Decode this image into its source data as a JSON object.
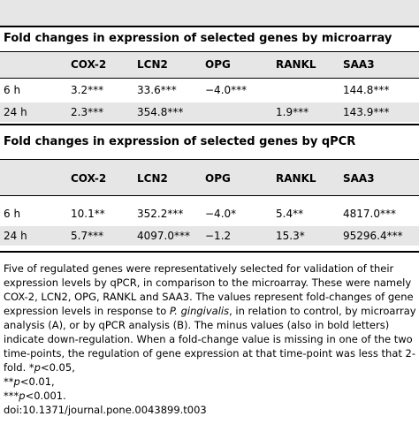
{
  "columns": [
    "",
    "COX-2",
    "LCN2",
    "OPG",
    "RANKL",
    "SAA3"
  ],
  "tables": [
    {
      "title": "Fold changes in expression of selected genes by microarray",
      "rows": [
        [
          "6 h",
          "3.2***",
          "33.6***",
          "−4.0***",
          "",
          "144.8***"
        ],
        [
          "24 h",
          "2.3***",
          "354.8***",
          "",
          "1.9***",
          "143.9***"
        ]
      ]
    },
    {
      "title": "Fold changes in expression of selected genes by qPCR",
      "rows": [
        [
          "6 h",
          "10.1**",
          "352.2***",
          "−4.0*",
          "5.4**",
          "4817.0***"
        ],
        [
          "24 h",
          "5.7***",
          "4097.0***",
          "−1.2",
          "15.3*",
          "95296.4***"
        ]
      ]
    }
  ],
  "footnote": {
    "text_before_italic": "Five of regulated genes were representatively selected for validation of their expression levels by qPCR, in comparison to the microarray. These were namely COX-2, LCN2, OPG, RANKL and SAA3. The values represent fold-changes of gene expression levels in response to ",
    "italic": "P. gingivalis",
    "text_after_italic": ", in relation to control, by microarray analysis (A), or by qPCR analysis (B). The minus values (also in bold letters) indicate down-regulation. When a fold-change value is missing in one of the two time-points, the regulation of gene expression at that time-point was less that 2-fold. ",
    "sig": [
      {
        "stars": "*",
        "p": "p",
        "rel": "<0.05,"
      },
      {
        "stars": "**",
        "p": "p",
        "rel": "<0.01,"
      },
      {
        "stars": "***",
        "p": "p",
        "rel": "<0.001."
      }
    ],
    "doi": "doi:10.1371/journal.pone.0043899.t003"
  }
}
